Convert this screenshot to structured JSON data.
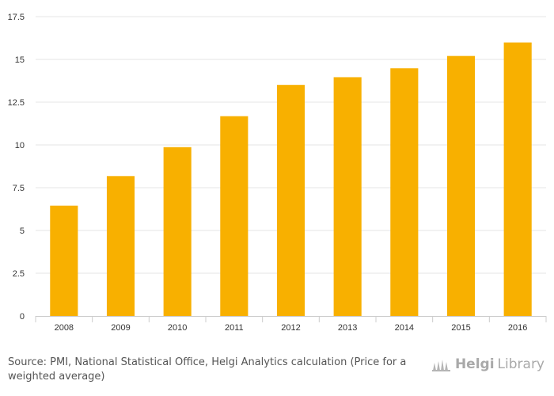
{
  "chart_data": {
    "type": "bar",
    "title": "",
    "xlabel": "",
    "ylabel": "",
    "categories": [
      "2008",
      "2009",
      "2010",
      "2011",
      "2012",
      "2013",
      "2014",
      "2015",
      "2016"
    ],
    "values": [
      6.45,
      8.18,
      9.87,
      11.68,
      13.51,
      13.96,
      14.48,
      15.2,
      15.99
    ],
    "ylim": [
      0,
      17.5
    ],
    "yticks": [
      0,
      2.5,
      5,
      7.5,
      10,
      12.5,
      15,
      17.5
    ],
    "ytick_labels": [
      "0",
      "2.5",
      "5",
      "7.5",
      "10",
      "12.5",
      "15",
      "17.5"
    ],
    "grid": true,
    "legend": "none",
    "bar_color": "#f8b000"
  },
  "footer": {
    "source_text": "Source: PMI, National Statistical Office, Helgi Analytics calculation (Price for a weighted average)"
  },
  "brand": {
    "name_part1": "Helgi",
    "name_part2": "Library",
    "logo_icon": "helgilibrary-logo-icon"
  },
  "colors": {
    "grid": "#e6e6e6",
    "axis": "#cccccc",
    "bar": "#f8b000"
  }
}
